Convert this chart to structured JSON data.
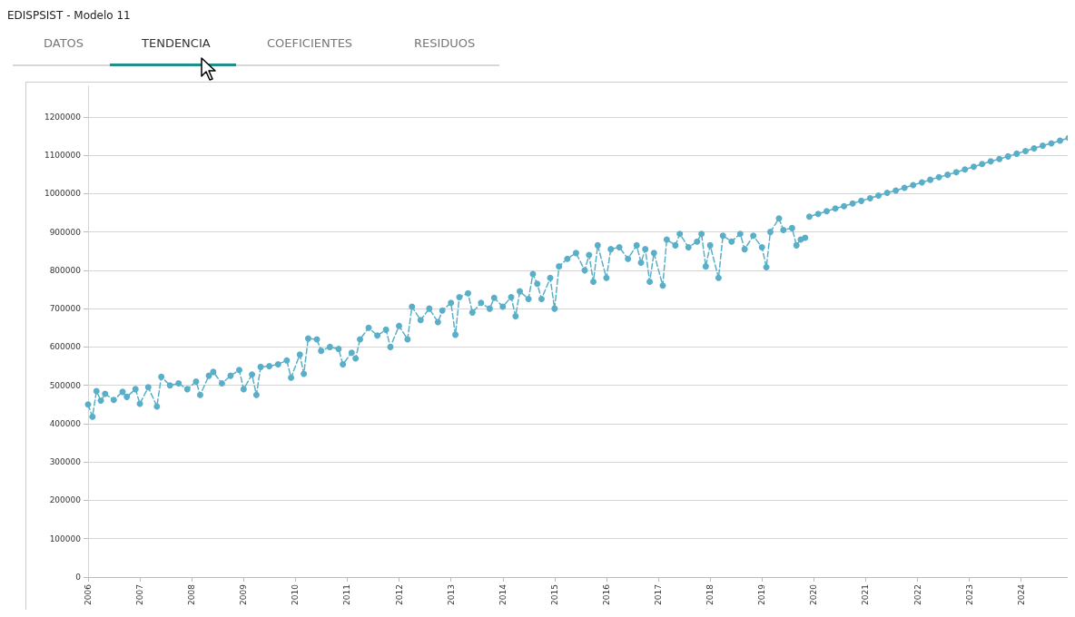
{
  "chart_data": {
    "type": "line",
    "title": "EDISPSIST - Modelo 11",
    "annotations": [
      "DATOS",
      "TENDENCIA",
      "COEFICIENTES",
      "RESIDUOS"
    ],
    "xlim": [
      "2006-01",
      "2024-12-20"
    ],
    "xticks": [
      "2006",
      "2007",
      "2008",
      "2009",
      "2010",
      "2011",
      "2012",
      "2013",
      "2014",
      "2015",
      "2016",
      "2017",
      "2018",
      "2019",
      "2020",
      "2021",
      "2022",
      "2023",
      "2024"
    ],
    "ylim": [
      0,
      1280000
    ],
    "yticks": [
      0,
      100000,
      200000,
      300000,
      400000,
      500000,
      600000,
      700000,
      800000,
      900000,
      1000000,
      1100000,
      1200000
    ],
    "grid": "y",
    "marker": "circle",
    "series": [
      {
        "color": "#5aafc8",
        "line_style": "dashed",
        "x": [
          "2006-01",
          "2006-02",
          "2006-03",
          "2006-04",
          "2006-05",
          "2006-07",
          "2006-09",
          "2006-10",
          "2006-12",
          "2007-01",
          "2007-03",
          "2007-05",
          "2007-06",
          "2007-08",
          "2007-10",
          "2007-12",
          "2008-02",
          "2008-03",
          "2008-05",
          "2008-06",
          "2008-08",
          "2008-10",
          "2008-12",
          "2009-01",
          "2009-03",
          "2009-04",
          "2009-05",
          "2009-07",
          "2009-09",
          "2009-11",
          "2009-12",
          "2010-02",
          "2010-03",
          "2010-04",
          "2010-06",
          "2010-07",
          "2010-09",
          "2010-11",
          "2010-12",
          "2011-02",
          "2011-03",
          "2011-04",
          "2011-06",
          "2011-08",
          "2011-10",
          "2011-11",
          "2012-01",
          "2012-03",
          "2012-04",
          "2012-06",
          "2012-08",
          "2012-10",
          "2012-11",
          "2013-01",
          "2013-02",
          "2013-03",
          "2013-05",
          "2013-06",
          "2013-08",
          "2013-10",
          "2013-11",
          "2014-01",
          "2014-03",
          "2014-04",
          "2014-05",
          "2014-07",
          "2014-08",
          "2014-09",
          "2014-10",
          "2014-12",
          "2015-01",
          "2015-02",
          "2015-04",
          "2015-06",
          "2015-08",
          "2015-09",
          "2015-10",
          "2015-11",
          "2016-01",
          "2016-02",
          "2016-04",
          "2016-06",
          "2016-08",
          "2016-09",
          "2016-10",
          "2016-11",
          "2016-12",
          "2017-02",
          "2017-03",
          "2017-05",
          "2017-06",
          "2017-08",
          "2017-10",
          "2017-11",
          "2017-12",
          "2018-01",
          "2018-03",
          "2018-04",
          "2018-06",
          "2018-08",
          "2018-09",
          "2018-11",
          "2019-01",
          "2019-02",
          "2019-03",
          "2019-05",
          "2019-06",
          "2019-08",
          "2019-09",
          "2019-10",
          "2019-11"
        ],
        "values": [
          450000,
          418000,
          485000,
          460000,
          478000,
          462000,
          483000,
          470000,
          490000,
          452000,
          495000,
          445000,
          522000,
          500000,
          505000,
          490000,
          510000,
          475000,
          525000,
          535000,
          505000,
          525000,
          540000,
          490000,
          528000,
          475000,
          548000,
          550000,
          555000,
          565000,
          520000,
          580000,
          530000,
          622000,
          620000,
          590000,
          600000,
          595000,
          555000,
          585000,
          570000,
          620000,
          650000,
          630000,
          645000,
          600000,
          655000,
          620000,
          705000,
          670000,
          700000,
          665000,
          695000,
          715000,
          632000,
          730000,
          740000,
          690000,
          715000,
          700000,
          728000,
          705000,
          730000,
          680000,
          745000,
          725000,
          790000,
          765000,
          725000,
          780000,
          700000,
          810000,
          830000,
          845000,
          800000,
          840000,
          770000,
          865000,
          780000,
          855000,
          860000,
          830000,
          865000,
          820000,
          855000,
          770000,
          845000,
          760000,
          880000,
          865000,
          895000,
          860000,
          875000,
          895000,
          810000,
          865000,
          780000,
          890000,
          875000,
          895000,
          855000,
          890000,
          860000,
          808000,
          900000,
          935000,
          905000,
          910000,
          865000,
          880000,
          885000
        ]
      },
      {
        "color": "#5aafc8",
        "line_style": "solid",
        "x": [
          "2019-12",
          "2020-02",
          "2020-04",
          "2020-06",
          "2020-08",
          "2020-10",
          "2020-12",
          "2021-02",
          "2021-04",
          "2021-06",
          "2021-08",
          "2021-10",
          "2021-12",
          "2022-02",
          "2022-04",
          "2022-06",
          "2022-08",
          "2022-10",
          "2022-12",
          "2023-02",
          "2023-04",
          "2023-06",
          "2023-08",
          "2023-10",
          "2023-12",
          "2024-02",
          "2024-04",
          "2024-06",
          "2024-08",
          "2024-10",
          "2024-12"
        ],
        "values": [
          940000,
          947000,
          954000,
          961000,
          967000,
          974000,
          981000,
          988000,
          995000,
          1002000,
          1008000,
          1015000,
          1022000,
          1029000,
          1036000,
          1043000,
          1049000,
          1056000,
          1063000,
          1070000,
          1077000,
          1084000,
          1090000,
          1097000,
          1104000,
          1111000,
          1118000,
          1125000,
          1131000,
          1138000,
          1145000
        ]
      }
    ]
  }
}
